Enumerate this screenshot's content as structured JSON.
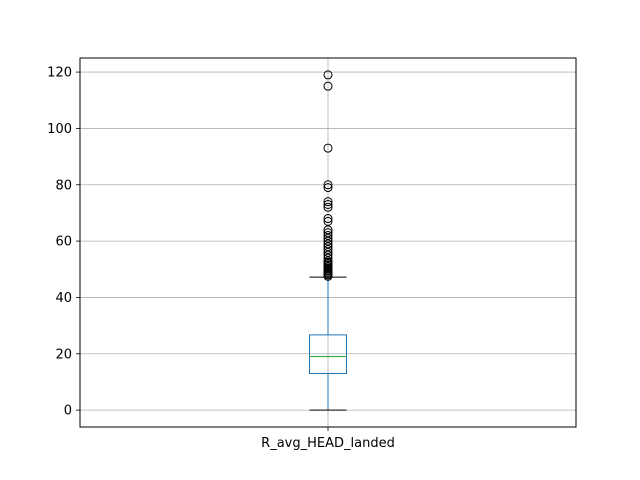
{
  "chart_data": {
    "type": "boxplot",
    "categories": [
      "R_avg_HEAD_landed"
    ],
    "series": [
      {
        "category": "R_avg_HEAD_landed",
        "whisker_low": 0,
        "q1": 13,
        "median": 19,
        "q3": 26.7,
        "whisker_high": 47.2,
        "outliers": [
          47.5,
          48,
          48.5,
          49,
          49.5,
          50,
          50.5,
          51,
          51.5,
          52,
          52.5,
          53,
          54,
          55,
          56,
          57,
          58,
          59,
          60,
          61,
          62,
          63,
          64,
          67,
          68,
          72,
          73,
          74,
          79,
          80,
          93,
          115,
          119
        ]
      }
    ],
    "yticks": [
      0,
      20,
      40,
      60,
      80,
      100,
      120
    ],
    "ylim": [
      -6,
      125
    ],
    "grid": true,
    "colors": {
      "box": "#1f77b4",
      "median": "#2ca02c",
      "whisker": "#1f77b4",
      "cap": "#000000",
      "outlier": "#000000",
      "grid": "#b0b0b0"
    }
  }
}
